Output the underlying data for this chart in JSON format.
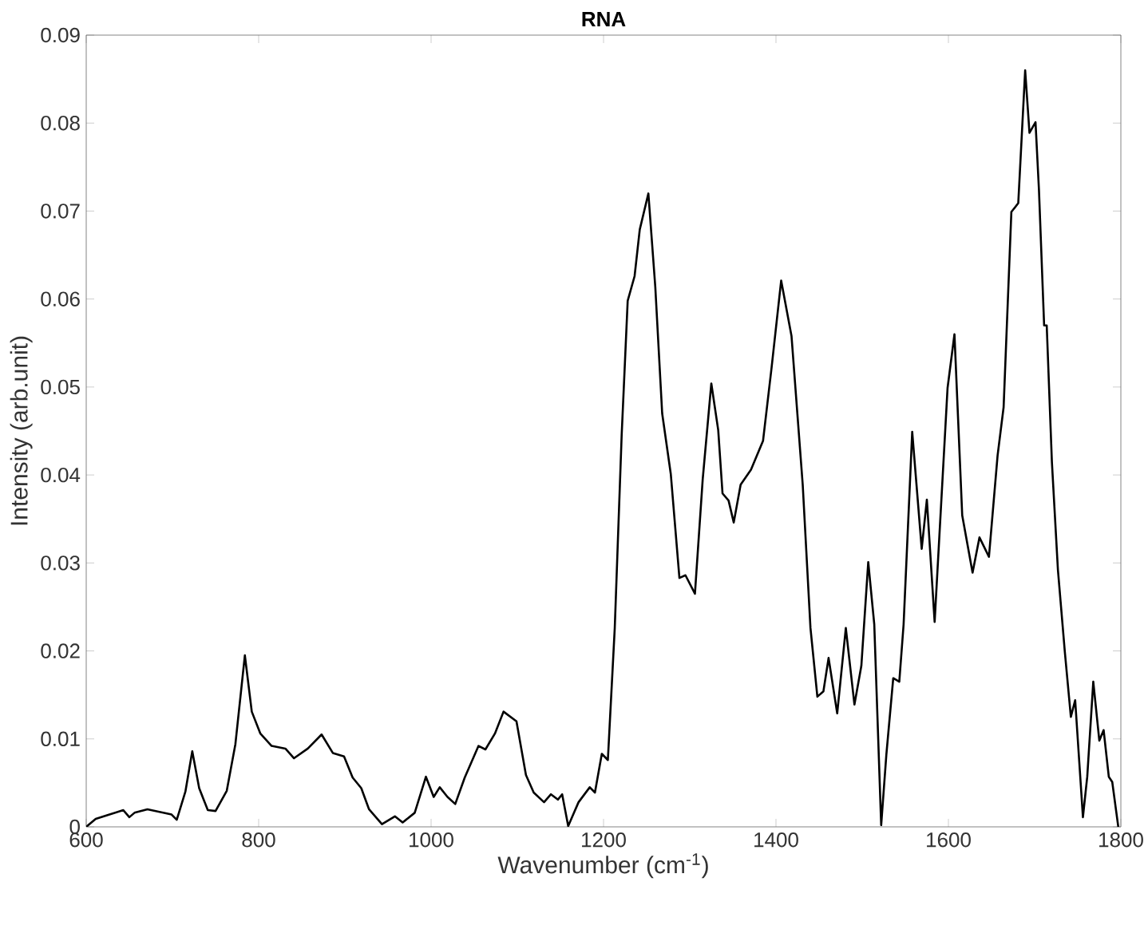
{
  "chart_data": {
    "type": "line",
    "title": "**RNA**",
    "xlabel": "Wavenumber (cm$^{-1}$)",
    "ylabel": "Intensity (arb.unit)",
    "color": "#000000",
    "xlim": [
      600,
      1800
    ],
    "ylim": [
      0,
      0.09
    ],
    "xticks": [
      600,
      800,
      1000,
      1200,
      1400,
      1600,
      1800
    ],
    "yticks": [
      0,
      0.01,
      0.02,
      0.03,
      0.04,
      0.05,
      0.06,
      0.07,
      0.08,
      0.09
    ],
    "x": [
      600,
      611,
      627,
      643,
      650,
      656,
      671,
      699,
      705,
      715,
      723,
      731,
      741,
      750,
      763,
      773,
      784,
      792,
      802,
      815,
      831,
      841,
      857,
      873,
      886,
      899,
      909,
      919,
      928,
      943,
      958,
      967,
      981,
      994,
      1003,
      1010,
      1019,
      1028,
      1039,
      1055,
      1063,
      1074,
      1084,
      1099,
      1110,
      1119,
      1131,
      1139,
      1147,
      1152,
      1159,
      1171,
      1184,
      1190,
      1198,
      1205,
      1213,
      1221,
      1228,
      1236,
      1242,
      1252,
      1260,
      1268,
      1278,
      1288,
      1295,
      1306,
      1315,
      1325,
      1333,
      1338,
      1345,
      1351,
      1359,
      1371,
      1385,
      1395,
      1406,
      1418,
      1431,
      1440,
      1448,
      1455,
      1461,
      1471,
      1481,
      1491,
      1499,
      1507,
      1514,
      1522,
      1528,
      1536,
      1543,
      1548,
      1558,
      1569,
      1575,
      1584,
      1599,
      1607,
      1616,
      1628,
      1636,
      1647,
      1657,
      1664,
      1673,
      1681,
      1689,
      1694,
      1701,
      1705,
      1711,
      1714,
      1720,
      1727,
      1735,
      1742,
      1747,
      1756,
      1761,
      1768,
      1775,
      1780,
      1786,
      1790,
      1797
    ],
    "values": [
      0,
      0.0009,
      0.0014,
      0.0019,
      0.0011,
      0.0016,
      0.002,
      0.0014,
      0.0008,
      0.004,
      0.0086,
      0.0044,
      0.0019,
      0.0018,
      0.0041,
      0.0094,
      0.0195,
      0.0131,
      0.0106,
      0.0092,
      0.0089,
      0.0078,
      0.0089,
      0.0105,
      0.0084,
      0.008,
      0.0056,
      0.0044,
      0.002,
      0.0003,
      0.0012,
      0.0005,
      0.0016,
      0.0057,
      0.0034,
      0.0045,
      0.0034,
      0.0026,
      0.0056,
      0.0092,
      0.0088,
      0.0106,
      0.0131,
      0.012,
      0.0059,
      0.0039,
      0.0028,
      0.0037,
      0.0031,
      0.0037,
      0.0001,
      0.0028,
      0.0045,
      0.0039,
      0.0083,
      0.0076,
      0.0226,
      0.0445,
      0.0598,
      0.0626,
      0.0679,
      0.072,
      0.0614,
      0.047,
      0.0401,
      0.0283,
      0.0286,
      0.0265,
      0.0395,
      0.0504,
      0.0451,
      0.0379,
      0.0371,
      0.0346,
      0.0389,
      0.0406,
      0.0439,
      0.0523,
      0.0621,
      0.0558,
      0.0389,
      0.0226,
      0.0148,
      0.0154,
      0.0192,
      0.0129,
      0.0226,
      0.0139,
      0.0183,
      0.0301,
      0.023,
      0.0002,
      0.0082,
      0.0169,
      0.0165,
      0.023,
      0.0449,
      0.0316,
      0.0372,
      0.0233,
      0.0499,
      0.056,
      0.0354,
      0.0289,
      0.0329,
      0.0307,
      0.0422,
      0.0477,
      0.0699,
      0.0709,
      0.086,
      0.0789,
      0.0801,
      0.0724,
      0.057,
      0.057,
      0.0415,
      0.0292,
      0.0199,
      0.0125,
      0.0144,
      0.0011,
      0.0057,
      0.0165,
      0.0098,
      0.011,
      0.0057,
      0.0051,
      0
    ]
  }
}
